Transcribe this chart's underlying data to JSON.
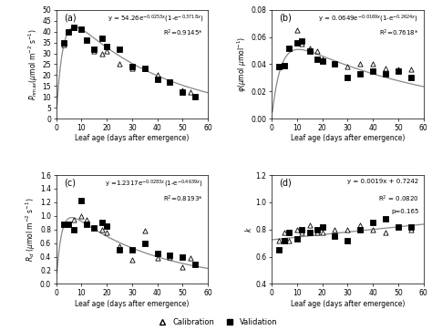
{
  "panel_a": {
    "label": "(a)",
    "eq_line1": "y = 54.26e$^{-0.0253x}$(1-e$^{-0.3718x}$)",
    "eq_line2": "R$^2$=0.9145*",
    "calib_x": [
      3,
      5,
      7,
      10,
      15,
      18,
      20,
      25,
      30,
      35,
      40,
      45,
      50,
      53
    ],
    "calib_y": [
      34,
      40,
      42,
      41,
      31,
      30,
      31,
      25,
      23,
      23,
      20,
      17,
      13,
      12
    ],
    "valid_x": [
      3,
      5,
      7,
      10,
      12,
      15,
      18,
      20,
      25,
      30,
      35,
      40,
      45,
      50,
      55
    ],
    "valid_y": [
      35,
      40,
      42,
      41,
      36,
      32,
      37,
      33,
      32,
      24,
      23,
      18,
      17,
      12,
      10
    ],
    "ylabel": "$P_{nmax}$($\\mu$mol m$^{-2}$ s$^{-1}$)",
    "ylim": [
      0,
      50
    ],
    "yticks": [
      0,
      5,
      10,
      15,
      20,
      25,
      30,
      35,
      40,
      45,
      50
    ],
    "fit_params": [
      54.26,
      0.0253,
      0.3718
    ]
  },
  "panel_b": {
    "label": "(b)",
    "eq_line1": "y = 0.0649e$^{-0.0169x}$(1-e$^{-0.2624x}$)",
    "eq_line2": "R$^2$=0.7618*",
    "calib_x": [
      3,
      5,
      10,
      12,
      15,
      18,
      20,
      25,
      30,
      35,
      40,
      45,
      50,
      55
    ],
    "calib_y": [
      0.038,
      0.039,
      0.065,
      0.055,
      0.052,
      0.05,
      0.044,
      0.04,
      0.038,
      0.04,
      0.04,
      0.037,
      0.036,
      0.036
    ],
    "valid_x": [
      3,
      5,
      7,
      10,
      12,
      15,
      18,
      20,
      25,
      30,
      35,
      40,
      45,
      50,
      55
    ],
    "valid_y": [
      0.038,
      0.039,
      0.052,
      0.056,
      0.057,
      0.05,
      0.044,
      0.042,
      0.04,
      0.03,
      0.033,
      0.035,
      0.033,
      0.035,
      0.03
    ],
    "ylabel": "$\\varphi$($\\mu$mol $\\mu$mol$^{-1}$)",
    "ylim": [
      0.0,
      0.08
    ],
    "yticks": [
      0.0,
      0.02,
      0.04,
      0.06,
      0.08
    ],
    "fit_params": [
      0.0649,
      0.0169,
      0.2624
    ]
  },
  "panel_c": {
    "label": "(c)",
    "eq_line1": "y =1.2317e$^{-0.0283x}$(1-e$^{-0.4639x}$)",
    "eq_line2": "R$^2$=0.8193*",
    "calib_x": [
      3,
      5,
      7,
      10,
      12,
      15,
      18,
      20,
      25,
      30,
      35,
      40,
      45,
      50,
      53
    ],
    "calib_y": [
      0.88,
      0.88,
      0.95,
      1.0,
      0.94,
      0.82,
      0.8,
      0.76,
      0.55,
      0.35,
      0.78,
      0.38,
      0.4,
      0.24,
      0.38
    ],
    "valid_x": [
      3,
      5,
      7,
      10,
      12,
      15,
      18,
      20,
      25,
      30,
      35,
      40,
      45,
      50,
      55
    ],
    "valid_y": [
      0.88,
      0.88,
      0.8,
      1.23,
      0.88,
      0.82,
      0.9,
      0.85,
      0.5,
      0.5,
      0.6,
      0.45,
      0.42,
      0.4,
      0.28
    ],
    "ylabel": "$R_d$ ($\\mu$mol m$^{-2}$ s$^{-1}$)",
    "ylim": [
      0.0,
      1.6
    ],
    "yticks": [
      0.0,
      0.2,
      0.4,
      0.6,
      0.8,
      1.0,
      1.2,
      1.4,
      1.6
    ],
    "fit_params": [
      1.2317,
      0.0283,
      0.4639
    ]
  },
  "panel_d": {
    "label": "(d)",
    "eq_line1": "y = 0.0019x + 0.7242",
    "eq_line2": "R$^2$ = 0.0820",
    "eq_line3": "p=0.165",
    "calib_x": [
      3,
      5,
      7,
      10,
      12,
      15,
      18,
      20,
      25,
      30,
      35,
      40,
      45,
      50,
      55
    ],
    "calib_y": [
      0.72,
      0.78,
      0.72,
      0.8,
      0.78,
      0.83,
      0.78,
      0.78,
      0.8,
      0.8,
      0.83,
      0.8,
      0.78,
      0.82,
      0.8
    ],
    "valid_x": [
      3,
      5,
      7,
      10,
      12,
      15,
      18,
      20,
      25,
      30,
      35,
      40,
      45,
      50,
      55
    ],
    "valid_y": [
      0.65,
      0.72,
      0.78,
      0.73,
      0.8,
      0.78,
      0.8,
      0.82,
      0.75,
      0.72,
      0.8,
      0.85,
      0.88,
      0.82,
      0.82
    ],
    "ylabel": "$k$",
    "ylim": [
      0.4,
      1.2
    ],
    "yticks": [
      0.4,
      0.6,
      0.8,
      1.0,
      1.2
    ],
    "fit_params": [
      0.0019,
      0.7242
    ]
  },
  "xlabel": "Leaf age (days after emergence)",
  "xlim": [
    0,
    60
  ],
  "xticks": [
    0,
    10,
    20,
    30,
    40,
    50,
    60
  ],
  "line_color": "#888888"
}
